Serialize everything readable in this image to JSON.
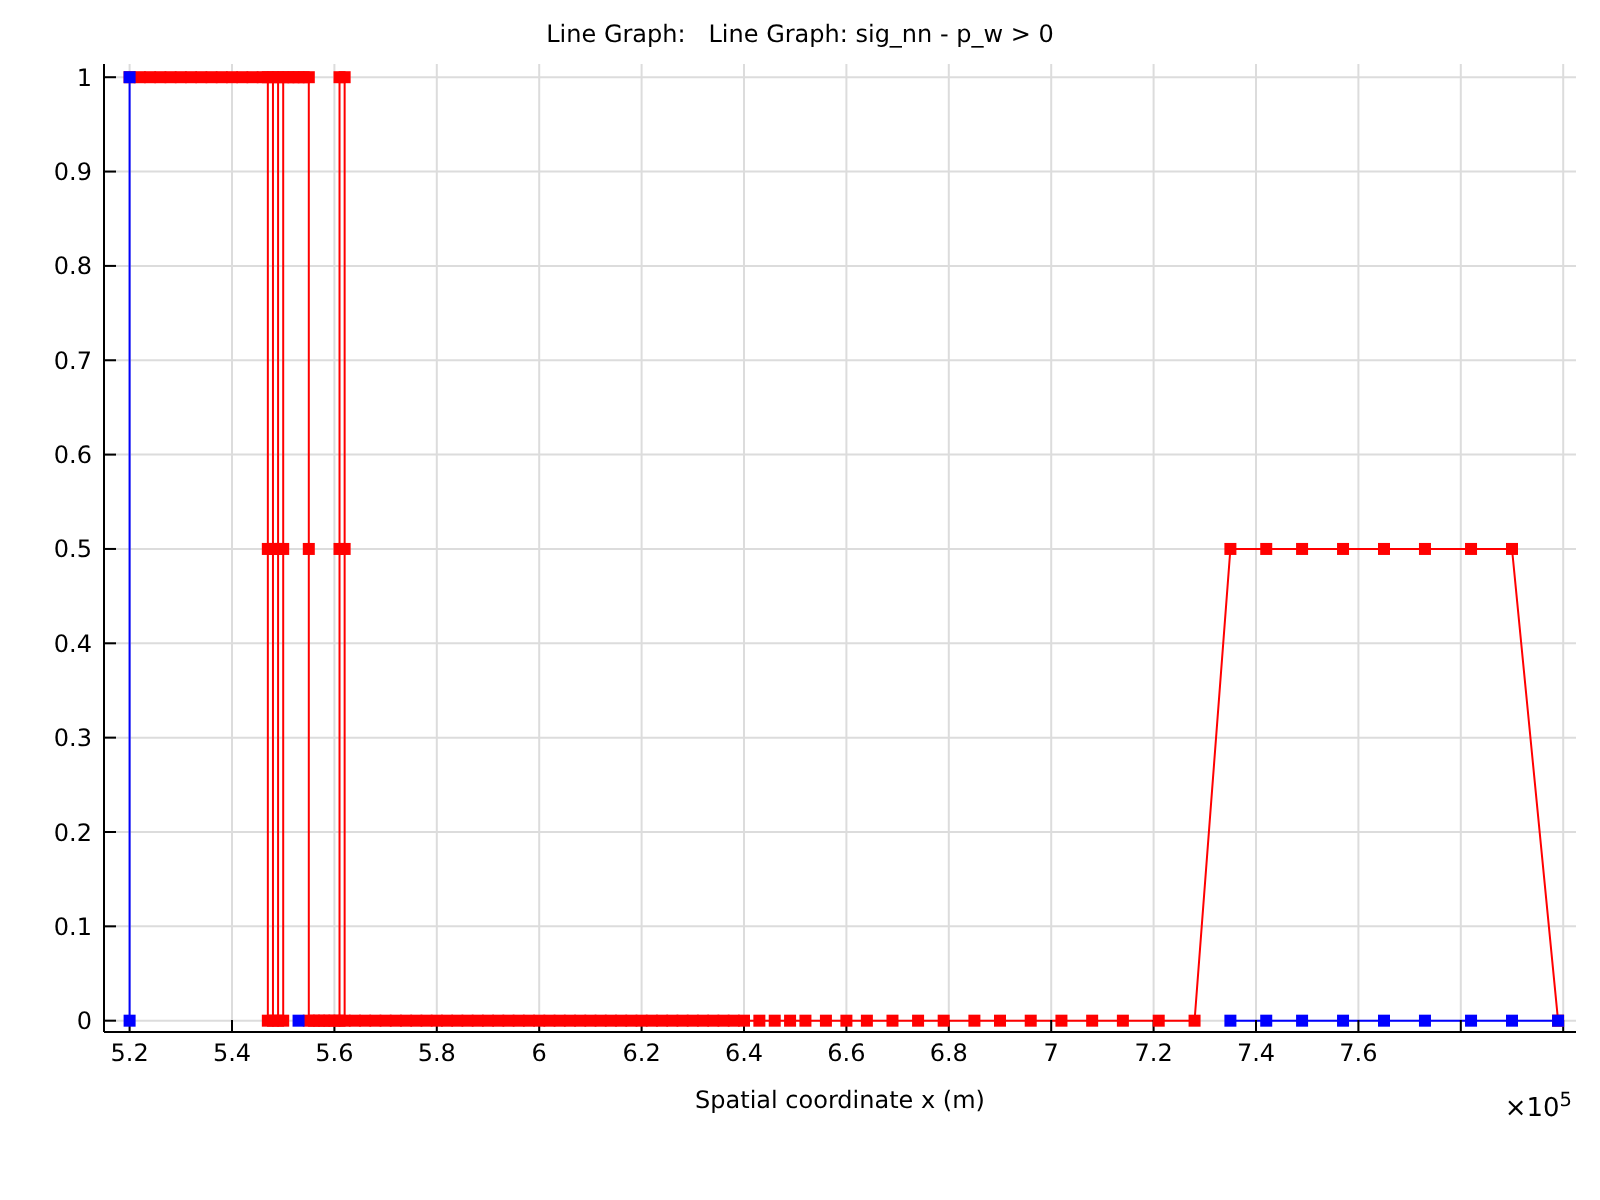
{
  "chart_data": {
    "type": "line",
    "title": "Line Graph:   Line Graph: sig_nn - p_w > 0",
    "xlabel": "Spatial coordinate x (m)",
    "annotations": [
      "×10$^{5}$"
    ],
    "xlim": [
      5.15,
      8.025
    ],
    "ylim": [
      -0.012,
      1.014
    ],
    "xticks": [
      5.2,
      5.4,
      5.6,
      5.8,
      6,
      6.2,
      6.4,
      6.6,
      6.8,
      7,
      7.2,
      7.4,
      7.6,
      {
        "value": 7.8,
        "label": null
      },
      {
        "value": 8,
        "label": null
      }
    ],
    "yticks": [
      0,
      0.1,
      0.2,
      0.3,
      0.4,
      0.5,
      0.6,
      0.7,
      0.8,
      0.9,
      1
    ],
    "grid": true,
    "marker": "square",
    "line_style": "solid",
    "series": [
      {
        "color": "#ff0000",
        "x": [
          5.2,
          5.22,
          5.24,
          5.26,
          5.28,
          5.3,
          5.32,
          5.34,
          5.36,
          5.38,
          5.4,
          5.42,
          5.44,
          5.46,
          5.47,
          5.47,
          5.47,
          5.48,
          5.48,
          5.48,
          5.49,
          5.49,
          5.49,
          5.5,
          5.5,
          5.5,
          5.51,
          5.52,
          5.53,
          5.54,
          5.55,
          5.55,
          5.55,
          5.56,
          5.57,
          5.58,
          5.59,
          5.6,
          5.61,
          5.61,
          5.61,
          5.62,
          5.62,
          5.62,
          5.64,
          5.66,
          5.68,
          5.7,
          5.72,
          5.74,
          5.76,
          5.78,
          5.8,
          5.82,
          5.84,
          5.86,
          5.88,
          5.9,
          5.92,
          5.94,
          5.96,
          5.98,
          6,
          6.02,
          6.04,
          6.06,
          6.08,
          6.1,
          6.12,
          6.14,
          6.16,
          6.18,
          6.2,
          6.22,
          6.24,
          6.26,
          6.28,
          6.3,
          6.32,
          6.34,
          6.36,
          6.38,
          6.4,
          6.43,
          6.46,
          6.49,
          6.52,
          6.56,
          6.6,
          6.64,
          6.69,
          6.74,
          6.79,
          6.85,
          6.9,
          6.96,
          7.02,
          7.08,
          7.14,
          7.21,
          7.28,
          7.35,
          7.42,
          7.49,
          7.57,
          7.65,
          7.73,
          7.82,
          7.9,
          7.99
        ],
        "values": [
          1,
          1,
          1,
          1,
          1,
          1,
          1,
          1,
          1,
          1,
          1,
          1,
          1,
          1,
          1,
          0.5,
          0,
          0,
          0.5,
          1,
          1,
          0.5,
          0,
          0,
          0.5,
          1,
          1,
          1,
          1,
          1,
          1,
          0.5,
          0,
          0,
          0,
          0,
          0,
          0,
          0,
          0.5,
          1,
          1,
          0.5,
          0,
          0,
          0,
          0,
          0,
          0,
          0,
          0,
          0,
          0,
          0,
          0,
          0,
          0,
          0,
          0,
          0,
          0,
          0,
          0,
          0,
          0,
          0,
          0,
          0,
          0,
          0,
          0,
          0,
          0,
          0,
          0,
          0,
          0,
          0,
          0,
          0,
          0,
          0,
          0,
          0,
          0,
          0,
          0,
          0,
          0,
          0,
          0,
          0,
          0,
          0,
          0,
          0,
          0,
          0,
          0,
          0,
          0,
          0.5,
          0.5,
          0.5,
          0.5,
          0.5,
          0.5,
          0.5,
          0.5,
          0
        ]
      },
      {
        "color": "#0000ff",
        "x": [
          5.2,
          5.2,
          5.4,
          5.53,
          6,
          7.35,
          7.42,
          7.49,
          7.57,
          7.65,
          7.73,
          7.82,
          7.9,
          7.99
        ],
        "values": [
          0,
          1,
          null,
          0,
          null,
          0,
          0,
          0,
          0,
          0,
          0,
          0,
          0,
          0
        ]
      }
    ]
  }
}
